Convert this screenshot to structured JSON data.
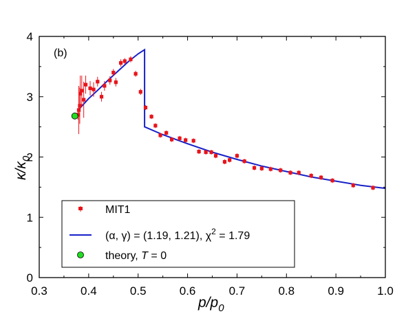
{
  "colors": {
    "data": "#e8141b",
    "fit": "#1620c8",
    "theory": "#22dd22",
    "axis": "#000000"
  },
  "chart_data": {
    "type": "scatter",
    "panel_label": "(b)",
    "xlabel_main": "p/p",
    "xlabel_sub": "0",
    "ylabel_main": "κ/κ",
    "ylabel_sub": "0",
    "xlim": [
      0.3,
      1.0
    ],
    "ylim": [
      0,
      4
    ],
    "xticks": [
      "0.3",
      "0.4",
      "0.5",
      "0.6",
      "0.7",
      "0.8",
      "0.9",
      "1.0"
    ],
    "yticks": [
      "0",
      "1",
      "2",
      "3",
      "4"
    ],
    "series": [
      {
        "name": "MIT1",
        "type": "scatter_errorbar",
        "points": [
          [
            0.378,
            2.7,
            0.08
          ],
          [
            0.38,
            2.78,
            0.4
          ],
          [
            0.382,
            2.85,
            0.3
          ],
          [
            0.383,
            3.05,
            0.3
          ],
          [
            0.386,
            3.1,
            0.25
          ],
          [
            0.39,
            2.95,
            0.3
          ],
          [
            0.394,
            3.2,
            0.15
          ],
          [
            0.403,
            3.14,
            0.12
          ],
          [
            0.41,
            3.12,
            0.12
          ],
          [
            0.418,
            3.25,
            0.08
          ],
          [
            0.426,
            3.0,
            0.08
          ],
          [
            0.432,
            3.18,
            0.08
          ],
          [
            0.443,
            3.27,
            0.07
          ],
          [
            0.45,
            3.4,
            0.06
          ],
          [
            0.455,
            3.24,
            0.07
          ],
          [
            0.465,
            3.56,
            0.06
          ],
          [
            0.473,
            3.59,
            0.05
          ],
          [
            0.485,
            3.62,
            0.05
          ],
          [
            0.495,
            3.38,
            0.05
          ],
          [
            0.505,
            3.08,
            0.05
          ],
          [
            0.515,
            2.82,
            0.04
          ],
          [
            0.527,
            2.67,
            0.04
          ],
          [
            0.535,
            2.52,
            0.04
          ],
          [
            0.545,
            2.36,
            0.04
          ],
          [
            0.557,
            2.4,
            0.04
          ],
          [
            0.568,
            2.29,
            0.04
          ],
          [
            0.584,
            2.31,
            0.04
          ],
          [
            0.596,
            2.28,
            0.04
          ],
          [
            0.612,
            2.27,
            0.04
          ],
          [
            0.623,
            2.09,
            0.04
          ],
          [
            0.637,
            2.08,
            0.04
          ],
          [
            0.648,
            2.08,
            0.04
          ],
          [
            0.657,
            2.02,
            0.04
          ],
          [
            0.675,
            1.92,
            0.04
          ],
          [
            0.685,
            1.95,
            0.04
          ],
          [
            0.7,
            2.02,
            0.04
          ],
          [
            0.715,
            1.93,
            0.04
          ],
          [
            0.735,
            1.82,
            0.04
          ],
          [
            0.75,
            1.81,
            0.04
          ],
          [
            0.768,
            1.8,
            0.04
          ],
          [
            0.788,
            1.78,
            0.04
          ],
          [
            0.808,
            1.74,
            0.04
          ],
          [
            0.825,
            1.74,
            0.04
          ],
          [
            0.85,
            1.69,
            0.04
          ],
          [
            0.87,
            1.66,
            0.04
          ],
          [
            0.893,
            1.61,
            0.04
          ],
          [
            0.935,
            1.53,
            0.04
          ],
          [
            0.975,
            1.49,
            0.04
          ]
        ]
      },
      {
        "name": "(α, γ) = (1.19, 1.21), χ² = 1.79",
        "type": "line",
        "points": [
          [
            0.379,
            2.78
          ],
          [
            0.4,
            2.97
          ],
          [
            0.42,
            3.12
          ],
          [
            0.44,
            3.28
          ],
          [
            0.46,
            3.43
          ],
          [
            0.48,
            3.58
          ],
          [
            0.5,
            3.71
          ],
          [
            0.513,
            3.78
          ],
          [
            0.513,
            2.5
          ],
          [
            0.55,
            2.37
          ],
          [
            0.6,
            2.22
          ],
          [
            0.65,
            2.08
          ],
          [
            0.7,
            1.96
          ],
          [
            0.75,
            1.85
          ],
          [
            0.8,
            1.76
          ],
          [
            0.85,
            1.67
          ],
          [
            0.9,
            1.6
          ],
          [
            0.95,
            1.53
          ],
          [
            1.0,
            1.48
          ]
        ]
      },
      {
        "name": "theory, T = 0",
        "type": "point",
        "points": [
          [
            0.372,
            2.68
          ]
        ]
      }
    ],
    "legend": {
      "placement": "lower-left",
      "entries": [
        {
          "label": "MIT1"
        },
        {
          "label_prefix": "(α, γ) = (1.19, 1.21), χ",
          "label_sup": "2",
          "label_suffix": " = 1.79"
        },
        {
          "label_prefix": "theory, ",
          "label_italic": "T",
          "label_suffix": " = 0"
        }
      ]
    }
  }
}
